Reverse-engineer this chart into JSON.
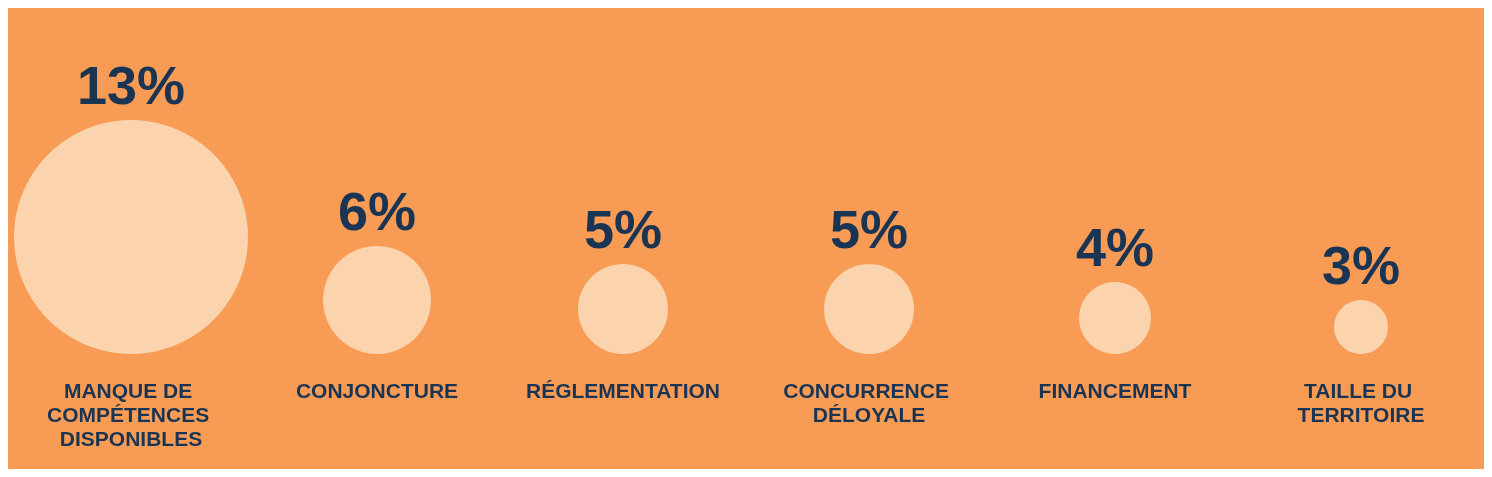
{
  "chart_data": {
    "type": "other",
    "categories": [
      "MANQUE DE COMPÉTENCES DISPONIBLES",
      "CONJONCTURE",
      "RÉGLEMENTATION",
      "CONCURRENCE DÉLOYALE",
      "FINANCEMENT",
      "TAILLE DU TERRITOIRE"
    ],
    "values": [
      13,
      6,
      5,
      5,
      4,
      3
    ],
    "value_labels": [
      "13%",
      "6%",
      "5%",
      "5%",
      "4%",
      "3%"
    ],
    "color": "#fbd3ad"
  }
}
